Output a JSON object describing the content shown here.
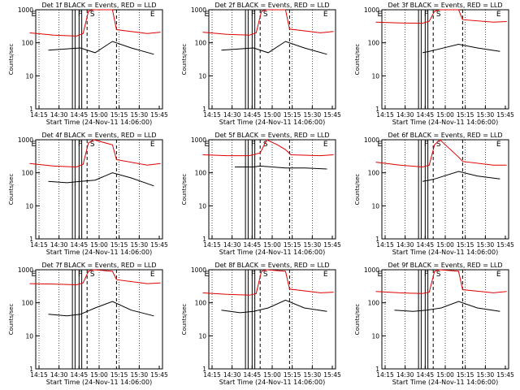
{
  "figure": {
    "x_title": "Start Time (24-Nov-11 14:06:00)",
    "y_title": "Counts/sec",
    "colors": {
      "events": "#000000",
      "lld": "#e00000",
      "axes": "#000000"
    }
  },
  "chart_data": [
    {
      "type": "line",
      "title": "Det 1f BLACK = Events, RED = LLD",
      "scale": "log",
      "ylim": [
        1,
        1000
      ],
      "x_ticks": [
        "14:15",
        "14:30",
        "14:45",
        "15:00",
        "15:15",
        "15:30",
        "15:45"
      ],
      "y_ticks": [
        "1",
        "10",
        "100",
        "1000"
      ],
      "markers": [
        "E",
        "F",
        "S",
        "E"
      ],
      "series": [
        {
          "name": "Events",
          "color": "#000000",
          "x_min": [
            16,
            40,
            51,
            64,
            78,
            95
          ],
          "values": [
            60,
            70,
            50,
            110,
            70,
            45
          ]
        },
        {
          "name": "LLD",
          "color": "#e00000",
          "x_min": [
            2,
            20,
            37,
            42,
            46,
            50,
            64,
            67,
            90,
            100
          ],
          "values": [
            200,
            170,
            160,
            190,
            900,
            1000,
            1000,
            250,
            190,
            210
          ]
        }
      ]
    },
    {
      "type": "line",
      "title": "Det 2f BLACK = Events, RED = LLD",
      "scale": "log",
      "ylim": [
        1,
        1000
      ],
      "x_ticks": [
        "14:15",
        "14:30",
        "14:45",
        "15:00",
        "15:15",
        "15:30",
        "15:45"
      ],
      "y_ticks": [
        "1",
        "10",
        "100",
        "1000"
      ],
      "markers": [
        "E",
        "F",
        "S",
        "E"
      ],
      "series": [
        {
          "name": "Events",
          "color": "#000000",
          "x_min": [
            16,
            40,
            51,
            64,
            78,
            95
          ],
          "values": [
            60,
            70,
            50,
            110,
            70,
            45
          ]
        },
        {
          "name": "LLD",
          "color": "#e00000",
          "x_min": [
            2,
            20,
            37,
            42,
            46,
            50,
            64,
            67,
            90,
            100
          ],
          "values": [
            210,
            180,
            170,
            200,
            900,
            1000,
            1000,
            260,
            200,
            220
          ]
        }
      ]
    },
    {
      "type": "line",
      "title": "Det 3f BLACK = Events, RED = LLD",
      "scale": "log",
      "ylim": [
        1,
        1000
      ],
      "x_ticks": [
        "14:15",
        "14:30",
        "14:45",
        "15:00",
        "15:15",
        "15:30",
        "15:45"
      ],
      "y_ticks": [
        "1",
        "10",
        "100",
        "1000"
      ],
      "markers": [
        "E",
        "F",
        "S",
        "E"
      ],
      "series": [
        {
          "name": "Events",
          "color": "#000000",
          "x_min": [
            37,
            42,
            46,
            64,
            78,
            95
          ],
          "values": [
            50,
            55,
            60,
            90,
            70,
            55
          ]
        },
        {
          "name": "LLD",
          "color": "#e00000",
          "x_min": [
            2,
            20,
            37,
            42,
            46,
            50,
            64,
            67,
            90,
            100
          ],
          "values": [
            420,
            400,
            390,
            450,
            900,
            1000,
            1000,
            500,
            420,
            440
          ]
        }
      ]
    },
    {
      "type": "line",
      "title": "Det 4f BLACK = Events, RED = LLD",
      "scale": "log",
      "ylim": [
        1,
        1000
      ],
      "x_ticks": [
        "14:15",
        "14:30",
        "14:45",
        "15:00",
        "15:15",
        "15:30",
        "15:45"
      ],
      "y_ticks": [
        "1",
        "10",
        "100",
        "1000"
      ],
      "markers": [
        "E",
        "F",
        "S",
        "E"
      ],
      "series": [
        {
          "name": "Events",
          "color": "#000000",
          "x_min": [
            16,
            30,
            40,
            51,
            64,
            78,
            95
          ],
          "values": [
            55,
            50,
            55,
            60,
            100,
            70,
            40
          ]
        },
        {
          "name": "LLD",
          "color": "#e00000",
          "x_min": [
            2,
            20,
            37,
            42,
            46,
            50,
            64,
            67,
            90,
            100
          ],
          "values": [
            190,
            160,
            150,
            180,
            800,
            1000,
            700,
            250,
            170,
            190
          ]
        }
      ]
    },
    {
      "type": "line",
      "title": "Det 5f BLACK = Events, RED = LLD",
      "scale": "log",
      "ylim": [
        1,
        1000
      ],
      "x_ticks": [
        "14:15",
        "14:30",
        "14:45",
        "15:00",
        "15:15",
        "15:30",
        "15:45"
      ],
      "y_ticks": [
        "1",
        "10",
        "100",
        "1000"
      ],
      "markers": [
        "E",
        "F",
        "S",
        "E"
      ],
      "series": [
        {
          "name": "Events",
          "color": "#000000",
          "x_min": [
            26,
            40,
            45,
            64,
            78,
            95
          ],
          "values": [
            150,
            150,
            160,
            140,
            140,
            130
          ]
        },
        {
          "name": "LLD",
          "color": "#e00000",
          "x_min": [
            2,
            20,
            37,
            45,
            50,
            58,
            64,
            68,
            90,
            100
          ],
          "values": [
            350,
            330,
            330,
            400,
            1000,
            700,
            500,
            350,
            330,
            350
          ]
        }
      ]
    },
    {
      "type": "line",
      "title": "Det 6f BLACK = Events, RED = LLD",
      "scale": "log",
      "ylim": [
        1,
        1000
      ],
      "x_ticks": [
        "14:15",
        "14:30",
        "14:45",
        "15:00",
        "15:15",
        "15:30",
        "15:45"
      ],
      "y_ticks": [
        "1",
        "10",
        "100",
        "1000"
      ],
      "markers": [
        "E",
        "F",
        "S",
        "E"
      ],
      "series": [
        {
          "name": "Events",
          "color": "#000000",
          "x_min": [
            37,
            42,
            46,
            64,
            78,
            95
          ],
          "values": [
            55,
            60,
            65,
            110,
            80,
            65
          ]
        },
        {
          "name": "LLD",
          "color": "#e00000",
          "x_min": [
            2,
            20,
            37,
            42,
            46,
            50,
            64,
            67,
            90,
            100
          ],
          "values": [
            210,
            170,
            150,
            170,
            700,
            1000,
            300,
            220,
            170,
            170
          ]
        }
      ]
    },
    {
      "type": "line",
      "title": "Det 7f BLACK = Events, RED = LLD",
      "scale": "log",
      "ylim": [
        1,
        1000
      ],
      "x_ticks": [
        "14:15",
        "14:30",
        "14:45",
        "15:00",
        "15:15",
        "15:30",
        "15:45"
      ],
      "y_ticks": [
        "1",
        "10",
        "100",
        "1000"
      ],
      "markers": [
        "E",
        "F",
        "S",
        "E"
      ],
      "series": [
        {
          "name": "Events",
          "color": "#000000",
          "x_min": [
            16,
            30,
            40,
            51,
            64,
            78,
            95
          ],
          "values": [
            45,
            40,
            45,
            70,
            110,
            60,
            40
          ]
        },
        {
          "name": "LLD",
          "color": "#e00000",
          "x_min": [
            2,
            20,
            37,
            42,
            46,
            50,
            64,
            67,
            90,
            100
          ],
          "values": [
            380,
            370,
            350,
            400,
            900,
            1000,
            900,
            500,
            380,
            400
          ]
        }
      ]
    },
    {
      "type": "line",
      "title": "Det 8f BLACK = Events, RED = LLD",
      "scale": "log",
      "ylim": [
        1,
        1000
      ],
      "x_ticks": [
        "14:15",
        "14:30",
        "14:45",
        "15:00",
        "15:15",
        "15:30",
        "15:45"
      ],
      "y_ticks": [
        "1",
        "10",
        "100",
        "1000"
      ],
      "markers": [
        "E",
        "F",
        "S",
        "E"
      ],
      "series": [
        {
          "name": "Events",
          "color": "#000000",
          "x_min": [
            16,
            30,
            40,
            51,
            64,
            78,
            95
          ],
          "values": [
            60,
            50,
            55,
            70,
            120,
            70,
            55
          ]
        },
        {
          "name": "LLD",
          "color": "#e00000",
          "x_min": [
            2,
            20,
            37,
            42,
            46,
            50,
            64,
            67,
            90,
            100
          ],
          "values": [
            200,
            180,
            170,
            190,
            900,
            1000,
            900,
            260,
            200,
            210
          ]
        }
      ]
    },
    {
      "type": "line",
      "title": "Det 9f BLACK = Events, RED = LLD",
      "scale": "log",
      "ylim": [
        1,
        1000
      ],
      "x_ticks": [
        "14:15",
        "14:30",
        "14:45",
        "15:00",
        "15:15",
        "15:30",
        "15:45"
      ],
      "y_ticks": [
        "1",
        "10",
        "100",
        "1000"
      ],
      "markers": [
        "E",
        "F",
        "S",
        "E"
      ],
      "series": [
        {
          "name": "Events",
          "color": "#000000",
          "x_min": [
            16,
            30,
            40,
            51,
            64,
            78,
            95
          ],
          "values": [
            60,
            55,
            60,
            70,
            110,
            70,
            55
          ]
        },
        {
          "name": "LLD",
          "color": "#e00000",
          "x_min": [
            2,
            20,
            37,
            42,
            46,
            50,
            64,
            67,
            90,
            100
          ],
          "values": [
            220,
            200,
            190,
            210,
            900,
            1000,
            900,
            250,
            200,
            220
          ]
        }
      ]
    }
  ]
}
